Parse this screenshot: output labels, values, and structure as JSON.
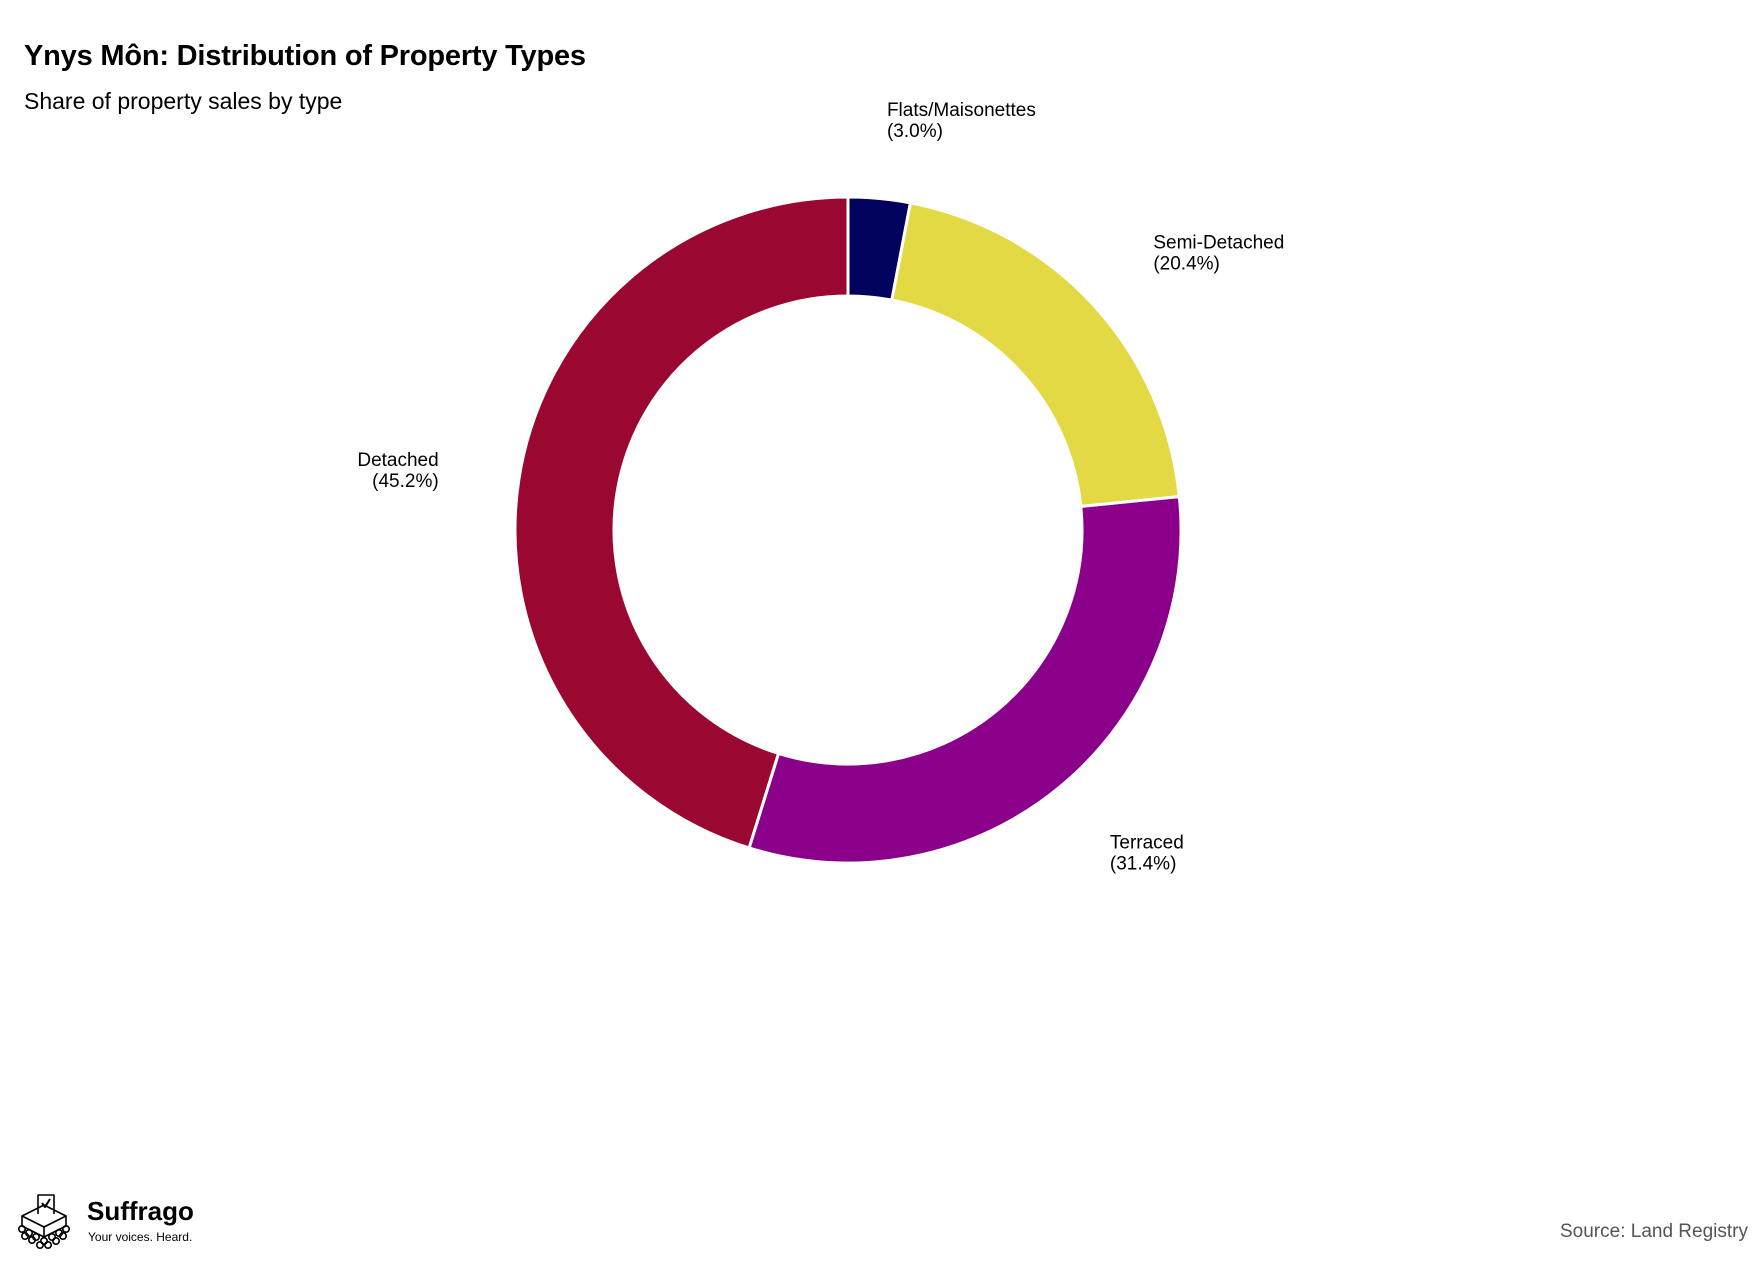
{
  "title": "Ynys Môn: Distribution of Property Types",
  "subtitle": "Share of property sales by type",
  "source": "Source: Land Registry",
  "logo": {
    "name": "Suffrago",
    "tagline": "Your voices. Heard."
  },
  "chart_data": {
    "type": "pie",
    "style": "donut",
    "start": "12 o'clock, clockwise",
    "slices": [
      {
        "label": "Flats/Maisonettes",
        "value": 3.0,
        "display": "(3.0%)",
        "color": "#01025e"
      },
      {
        "label": "Semi-Detached",
        "value": 20.4,
        "display": "(20.4%)",
        "color": "#e3d944"
      },
      {
        "label": "Terraced",
        "value": 31.4,
        "display": "(31.4%)",
        "color": "#8a008a"
      },
      {
        "label": "Detached",
        "value": 45.2,
        "display": "(45.2%)",
        "color": "#9a0832"
      }
    ],
    "slice_border_color": "#ffffff"
  }
}
